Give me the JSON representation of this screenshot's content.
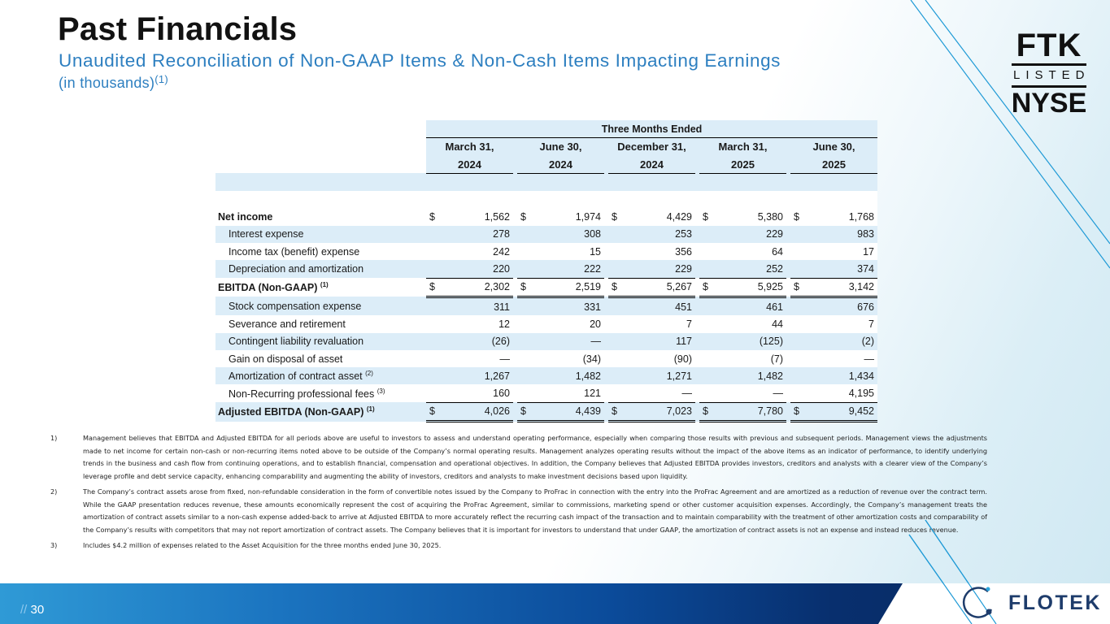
{
  "page": {
    "title": "Past Financials",
    "subtitle": "Unaudited Reconciliation of Non-GAAP Items & Non-Cash Items Impacting Earnings",
    "units": "(in thousands)",
    "units_note": "(1)",
    "page_number": "30",
    "page_prefix": "//"
  },
  "badge": {
    "line1": "FTK",
    "line2": "LISTED",
    "line3": "NYSE"
  },
  "brand": {
    "name": "FLOTEK",
    "primary": "#1e3c6b",
    "accent": "#2d7fc0"
  },
  "table": {
    "group_header": "Three Months Ended",
    "columns": [
      {
        "date": "March 31,",
        "year": "2024"
      },
      {
        "date": "June 30,",
        "year": "2024"
      },
      {
        "date": "December 31,",
        "year": "2024"
      },
      {
        "date": "March 31,",
        "year": "2025"
      },
      {
        "date": "June 30,",
        "year": "2025"
      }
    ],
    "currency": "$",
    "rows": [
      {
        "label": "Net income",
        "sup": "",
        "values": [
          "1,562",
          "1,974",
          "4,429",
          "5,380",
          "1,768"
        ]
      },
      {
        "label": "Interest expense",
        "sup": "",
        "values": [
          "278",
          "308",
          "253",
          "229",
          "983"
        ]
      },
      {
        "label": "Income tax (benefit) expense",
        "sup": "",
        "values": [
          "242",
          "15",
          "356",
          "64",
          "17"
        ]
      },
      {
        "label": "Depreciation and amortization",
        "sup": "",
        "values": [
          "220",
          "222",
          "229",
          "252",
          "374"
        ]
      },
      {
        "label": "EBITDA (Non-GAAP)",
        "sup": "(1)",
        "values": [
          "2,302",
          "2,519",
          "5,267",
          "5,925",
          "3,142"
        ]
      },
      {
        "label": "Stock compensation expense",
        "sup": "",
        "values": [
          "311",
          "331",
          "451",
          "461",
          "676"
        ]
      },
      {
        "label": "Severance and retirement",
        "sup": "",
        "values": [
          "12",
          "20",
          "7",
          "44",
          "7"
        ]
      },
      {
        "label": "Contingent liability revaluation",
        "sup": "",
        "values": [
          "(26)",
          "—",
          "117",
          "(125)",
          "(2)"
        ]
      },
      {
        "label": "Gain on disposal of asset",
        "sup": "",
        "values": [
          "—",
          "(34)",
          "(90)",
          "(7)",
          "—"
        ]
      },
      {
        "label": "Amortization of contract asset",
        "sup": "(2)",
        "values": [
          "1,267",
          "1,482",
          "1,271",
          "1,482",
          "1,434"
        ]
      },
      {
        "label": "Non-Recurring professional fees",
        "sup": "(3)",
        "values": [
          "160",
          "121",
          "—",
          "—",
          "4,195"
        ]
      },
      {
        "label": "Adjusted EBITDA (Non-GAAP)",
        "sup": "(1)",
        "values": [
          "4,026",
          "4,439",
          "7,023",
          "7,780",
          "9,452"
        ]
      }
    ]
  },
  "footnotes": [
    {
      "num": "1)",
      "text": "Management believes that EBITDA and Adjusted EBITDA for all periods above are useful to investors to assess and understand operating performance, especially when comparing those results with previous and subsequent periods. Management views the adjustments made to net income for certain non-cash or non-recurring items noted above to be outside of the Company’s normal operating results.  Management analyzes operating results without the impact of the above items as an indicator of performance, to identify underlying trends in the business and cash flow from continuing operations, and to establish financial, compensation and operational objectives. In addition, the Company believes that Adjusted EBITDA provides investors, creditors and analysts with a clearer view of the Company’s leverage profile and debt service capacity, enhancing comparability and augmenting the ability of investors, creditors and analysts to make investment decisions based upon liquidity."
    },
    {
      "num": "2)",
      "text": "The Company’s contract assets arose from fixed, non-refundable consideration in the form of convertible notes issued by the Company to ProFrac in connection with the entry into the ProFrac Agreement and are amortized as a reduction of revenue over the contract term. While the GAAP presentation reduces revenue, these amounts economically represent the cost of acquiring the ProFrac Agreement, similar to commissions, marketing spend or other customer acquisition expenses. Accordingly, the Company’s management treats the amortization of contract assets similar to a non-cash expense added-back to arrive at Adjusted EBITDA to more accurately reflect the recurring cash impact of the transaction and to maintain comparability with the treatment of other amortization costs and comparability of the Company’s results with competitors that may not report amortization of contract assets. The Company believes that it is important for investors to understand that under GAAP, the amortization of contract assets is not an expense and instead reduces revenue."
    },
    {
      "num": "3)",
      "text": "Includes $4.2 million of expenses related to the Asset Acquisition for the three months ended June 30, 2025."
    }
  ]
}
